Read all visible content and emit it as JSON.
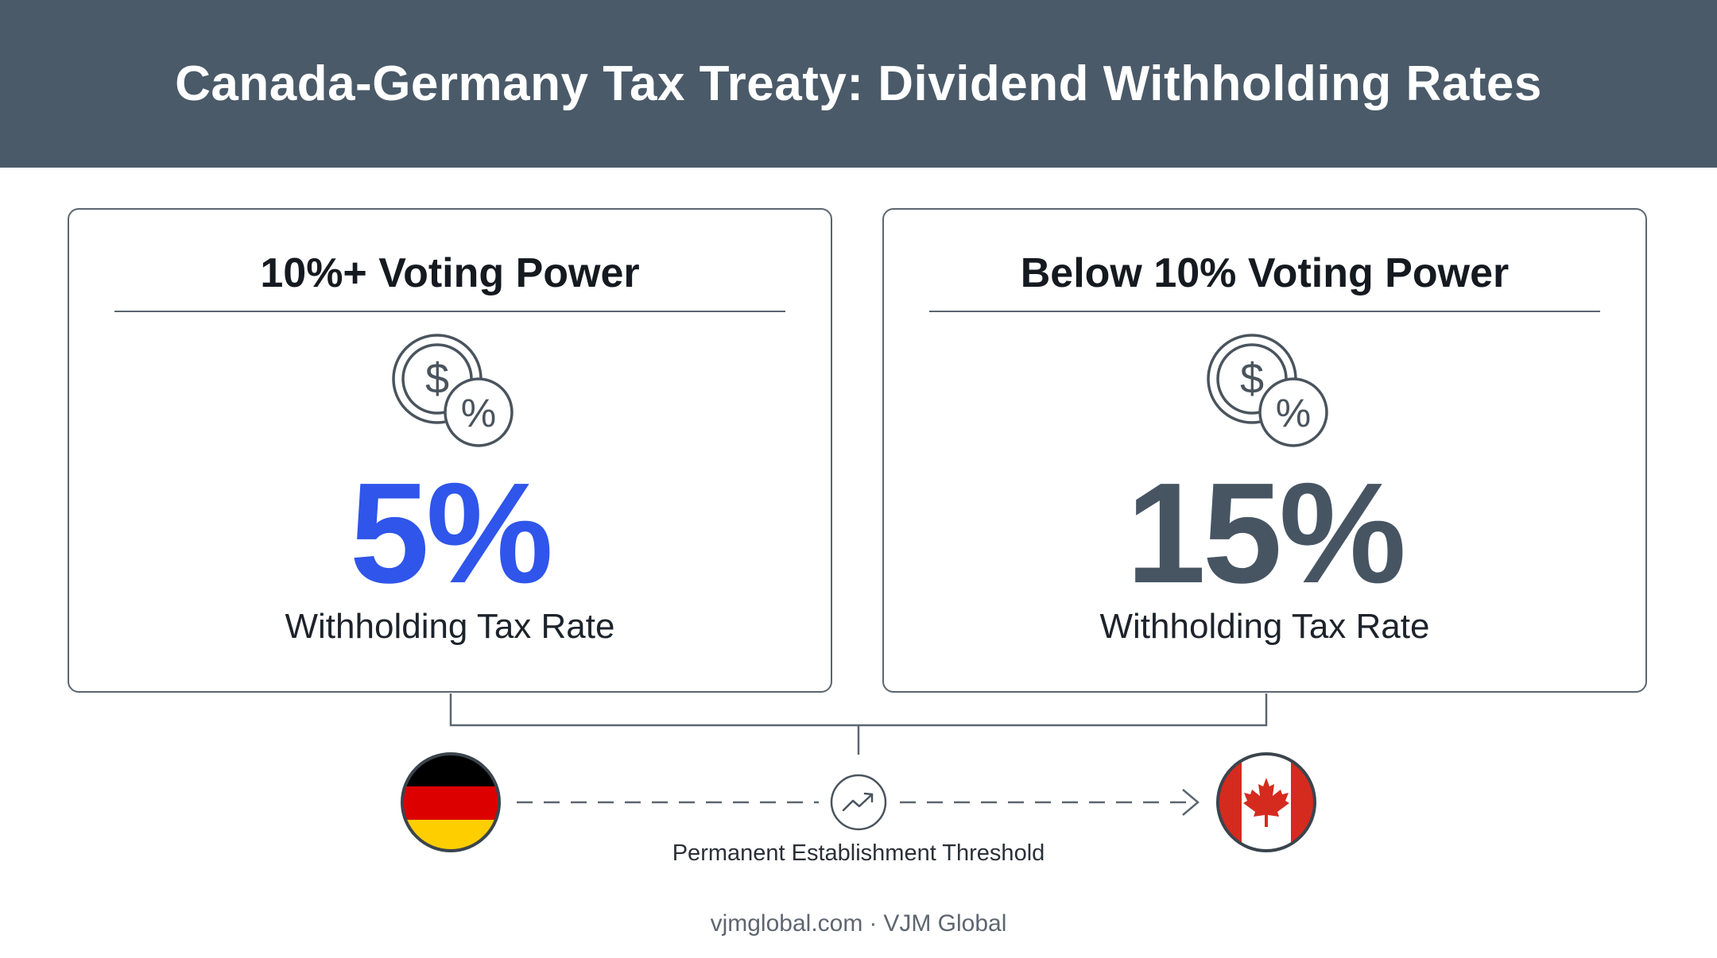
{
  "title": "Canada-Germany Tax Treaty: Dividend Withholding Rates",
  "cards": [
    {
      "heading": "10%+ Voting Power",
      "rate": "5%",
      "rate_label": "Withholding Tax Rate",
      "icon": "dollar-percent-icon",
      "rate_color": "#2f55ea"
    },
    {
      "heading": "Below 10% Voting Power",
      "rate": "15%",
      "rate_label": "Withholding Tax Rate",
      "icon": "dollar-percent-icon",
      "rate_color": "#475563"
    }
  ],
  "flow": {
    "from_flag": "germany-flag-icon",
    "to_flag": "canada-flag-icon",
    "center_icon": "trend-up-icon",
    "label": "Permanent Establishment Threshold"
  },
  "footer": {
    "site": "vjmglobal.com",
    "separator": "·",
    "brand": "VJM Global"
  },
  "colors": {
    "header_bg": "#4a5a69",
    "accent_blue": "#2f55ea",
    "slate": "#475563",
    "germany": [
      "#000000",
      "#dd0000",
      "#ffce00"
    ],
    "canada_red": "#d52b1e"
  }
}
